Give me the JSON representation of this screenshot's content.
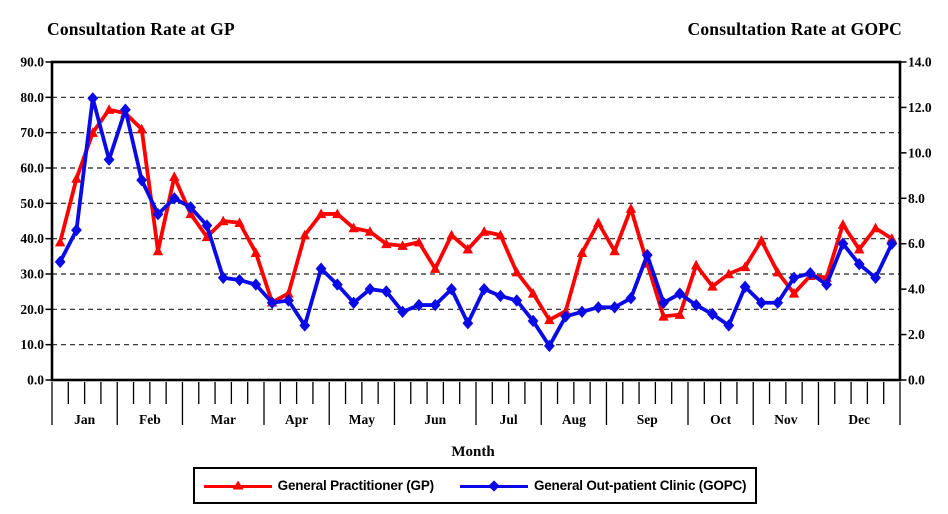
{
  "titles": {
    "left": "Consultation Rate at GP",
    "right": "Consultation Rate at GOPC"
  },
  "axes": {
    "x_title": "Month",
    "left_tick_labels": [
      "90.0",
      "80.0",
      "70.0",
      "60.0",
      "50.0",
      "40.0",
      "30.0",
      "20.0",
      "10.0",
      "0.0"
    ],
    "right_tick_labels": [
      "14.0",
      "12.0",
      "10.0",
      "8.0",
      "6.0",
      "4.0",
      "2.0",
      "0.0"
    ]
  },
  "legend": {
    "items": [
      {
        "label": "General Practitioner (GP)",
        "color": "#ff0000",
        "marker": "triangle"
      },
      {
        "label": "General Out-patient Clinic (GOPC)",
        "color": "#0a0ae6",
        "marker": "diamond"
      }
    ]
  },
  "colors": {
    "gp_red": "#ff0000",
    "gopc_blue": "#0a0ae6",
    "grid": "#222222",
    "axis": "#000000",
    "background": "#ffffff"
  },
  "chart_data": {
    "type": "line",
    "title_left_axis": "Consultation Rate at GP",
    "title_right_axis": "Consultation Rate at GOPC",
    "xlabel": "Month",
    "grid": "horizontal dashed",
    "legend_position": "bottom",
    "months": [
      {
        "label": "Jan",
        "weeks": 4
      },
      {
        "label": "Feb",
        "weeks": 4
      },
      {
        "label": "Mar",
        "weeks": 5
      },
      {
        "label": "Apr",
        "weeks": 4
      },
      {
        "label": "May",
        "weeks": 4
      },
      {
        "label": "Jun",
        "weeks": 5
      },
      {
        "label": "Jul",
        "weeks": 4
      },
      {
        "label": "Aug",
        "weeks": 4
      },
      {
        "label": "Sep",
        "weeks": 5
      },
      {
        "label": "Oct",
        "weeks": 4
      },
      {
        "label": "Nov",
        "weeks": 4
      },
      {
        "label": "Dec",
        "weeks": 5
      }
    ],
    "left_axis": {
      "min": 0,
      "max": 90,
      "step": 10
    },
    "right_axis": {
      "min": 0,
      "max": 14,
      "step": 2
    },
    "series": [
      {
        "name": "General Practitioner (GP)",
        "axis": "left",
        "color": "#ff0000",
        "marker": "triangle",
        "values": [
          39,
          57,
          70,
          76.5,
          75.5,
          71,
          36.5,
          57.5,
          47,
          40.5,
          45,
          44.5,
          36,
          22,
          24.5,
          41,
          47,
          47,
          43,
          42,
          38.5,
          38,
          39,
          31.5,
          41,
          37,
          42,
          41,
          30.5,
          24.5,
          17,
          19.5,
          36,
          44.5,
          36.5,
          48.5,
          33,
          18,
          18.5,
          32.5,
          26.5,
          30,
          32,
          39.5,
          30.5,
          24.5,
          29.5,
          29,
          44,
          37,
          43,
          40
        ]
      },
      {
        "name": "General Out-patient Clinic (GOPC)",
        "axis": "right",
        "color": "#0a0ae6",
        "marker": "diamond",
        "values": [
          5.2,
          6.6,
          12.4,
          9.7,
          11.9,
          8.8,
          7.3,
          8.0,
          7.6,
          6.8,
          4.5,
          4.4,
          4.2,
          3.4,
          3.5,
          2.4,
          4.9,
          4.2,
          3.4,
          4.0,
          3.9,
          3.0,
          3.3,
          3.3,
          4.0,
          2.5,
          4.0,
          3.7,
          3.5,
          2.6,
          1.5,
          2.8,
          3.0,
          3.2,
          3.2,
          3.6,
          5.5,
          3.4,
          3.8,
          3.3,
          2.9,
          2.4,
          4.1,
          3.4,
          3.4,
          4.5,
          4.7,
          4.2,
          6.0,
          5.1,
          4.5,
          6.0
        ]
      }
    ]
  }
}
